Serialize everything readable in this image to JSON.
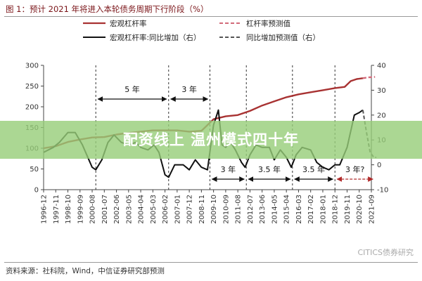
{
  "figure": {
    "title": "图 1：预计 2021 年将进入本轮债务周期下行阶段（%）",
    "source": "资料来源：社科院，Wind，中信证券研究部预测",
    "watermark": "CITICS债券研究",
    "banner": "配资线上 温州模式四十年"
  },
  "chart_data": {
    "type": "line",
    "title": "",
    "xlabel": "",
    "ylabel": "",
    "ylim_left": [
      0,
      300
    ],
    "yticks_left": [
      0,
      50,
      100,
      150,
      200,
      250,
      300
    ],
    "ylim_right": [
      -10,
      40
    ],
    "yticks_right": [
      -10,
      0,
      10,
      20,
      30,
      40
    ],
    "x_tick_labels": [
      "1996-12",
      "1997-11",
      "1998-10",
      "1999-09",
      "2000-08",
      "2001-07",
      "2002-06",
      "2003-05",
      "2004-04",
      "2005-03",
      "2006-02",
      "2007-01",
      "2007-12",
      "2008-11",
      "2009-10",
      "2010-09",
      "2011-08",
      "2012-07",
      "2013-06",
      "2014-05",
      "2015-04",
      "2016-03",
      "2017-02",
      "2018-01",
      "2018-12",
      "2019-11",
      "2020-10",
      "2021-09"
    ],
    "legend": [
      {
        "label": "宏观杠杆率",
        "color": "#a83232",
        "dash": false
      },
      {
        "label": "杠杆率预测值",
        "color": "#d26a7a",
        "dash": true
      },
      {
        "label": "宏观杠杆率:同比增加（右）",
        "color": "#111111",
        "dash": false
      },
      {
        "label": "同比增加预测值（右）",
        "color": "#555555",
        "dash": true
      }
    ],
    "series": [
      {
        "name": "宏观杠杆率",
        "axis": "left",
        "color": "#a83232",
        "points": [
          [
            0,
            100
          ],
          [
            1,
            105
          ],
          [
            2,
            115
          ],
          [
            3,
            121
          ],
          [
            4,
            126
          ],
          [
            5,
            127
          ],
          [
            6,
            133
          ],
          [
            7,
            137
          ],
          [
            8,
            140
          ],
          [
            9,
            143
          ],
          [
            10,
            143
          ],
          [
            11,
            143
          ],
          [
            12,
            140
          ],
          [
            13,
            142
          ],
          [
            14,
            170
          ],
          [
            15,
            177
          ],
          [
            16,
            180
          ],
          [
            17,
            190
          ],
          [
            18,
            203
          ],
          [
            19,
            213
          ],
          [
            20,
            223
          ],
          [
            21,
            230
          ],
          [
            22,
            235
          ],
          [
            23,
            240
          ],
          [
            24,
            245
          ],
          [
            24.8,
            248
          ],
          [
            25.3,
            262
          ],
          [
            25.8,
            267
          ],
          [
            26.3,
            269
          ]
        ]
      },
      {
        "name": "杠杆率预测值",
        "axis": "left",
        "color": "#d26a7a",
        "dashed": true,
        "points": [
          [
            26.3,
            269
          ],
          [
            26.8,
            271
          ],
          [
            27.3,
            272
          ]
        ]
      },
      {
        "name": "宏观杠杆率:同比增加（右）",
        "axis": "right",
        "color": "#111111",
        "points": [
          [
            0,
            5
          ],
          [
            0.8,
            7
          ],
          [
            1.3,
            9
          ],
          [
            2,
            13
          ],
          [
            2.6,
            13
          ],
          [
            3.2,
            8
          ],
          [
            4,
            -1
          ],
          [
            4.3,
            -2
          ],
          [
            4.8,
            2
          ],
          [
            5.3,
            9
          ],
          [
            5.8,
            12
          ],
          [
            6.4,
            9
          ],
          [
            7,
            8
          ],
          [
            7.6,
            9
          ],
          [
            8,
            7
          ],
          [
            8.6,
            6
          ],
          [
            9.1,
            8
          ],
          [
            9.5,
            5
          ],
          [
            10,
            -4
          ],
          [
            10.3,
            -5
          ],
          [
            10.8,
            0
          ],
          [
            11.5,
            0
          ],
          [
            12,
            -2
          ],
          [
            12.5,
            2
          ],
          [
            13,
            -1
          ],
          [
            13.5,
            -2
          ],
          [
            14,
            16
          ],
          [
            14.4,
            22
          ],
          [
            14.7,
            8
          ],
          [
            15,
            7
          ],
          [
            15.4,
            9
          ],
          [
            15.8,
            6
          ],
          [
            16.3,
            1
          ],
          [
            16.6,
            -1
          ],
          [
            17,
            4
          ],
          [
            17.5,
            8
          ],
          [
            18,
            7
          ],
          [
            18.6,
            7
          ],
          [
            19,
            2
          ],
          [
            19.5,
            6
          ],
          [
            20,
            3
          ],
          [
            20.4,
            -1
          ],
          [
            20.8,
            4
          ],
          [
            21.3,
            7
          ],
          [
            22,
            6
          ],
          [
            22.5,
            1
          ],
          [
            23,
            -1
          ],
          [
            23.5,
            -2
          ],
          [
            24,
            0
          ],
          [
            24.4,
            0
          ],
          [
            25,
            7
          ],
          [
            25.6,
            20
          ],
          [
            26,
            21
          ],
          [
            26.3,
            22
          ]
        ]
      },
      {
        "name": "同比增加预测值（右）",
        "axis": "right",
        "color": "#555555",
        "dashed": true,
        "points": [
          [
            26.3,
            22
          ],
          [
            26.6,
            13
          ],
          [
            26.9,
            5
          ],
          [
            27.2,
            3
          ],
          [
            27.4,
            3
          ]
        ]
      }
    ],
    "periods": [
      {
        "label": "5 年",
        "x_from": 4.3,
        "x_to": 10.3,
        "row": "upper",
        "uncertain": false
      },
      {
        "label": "3 年",
        "x_from": 10.3,
        "x_to": 13.7,
        "row": "upper",
        "uncertain": false
      },
      {
        "label": "3 年",
        "x_from": 13.7,
        "x_to": 16.7,
        "row": "lower",
        "uncertain": false
      },
      {
        "label": "3.5 年",
        "x_from": 16.7,
        "x_to": 20.5,
        "row": "lower",
        "uncertain": false
      },
      {
        "label": "3.5 年",
        "x_from": 20.5,
        "x_to": 24.0,
        "row": "lower",
        "uncertain": false
      },
      {
        "label": "3 年?",
        "x_from": 24.0,
        "x_to": 27.3,
        "row": "lower",
        "uncertain": true
      }
    ],
    "cycle_dividers": [
      4.3,
      10.3,
      13.7,
      16.7,
      20.5,
      24.0
    ],
    "grid": false
  }
}
